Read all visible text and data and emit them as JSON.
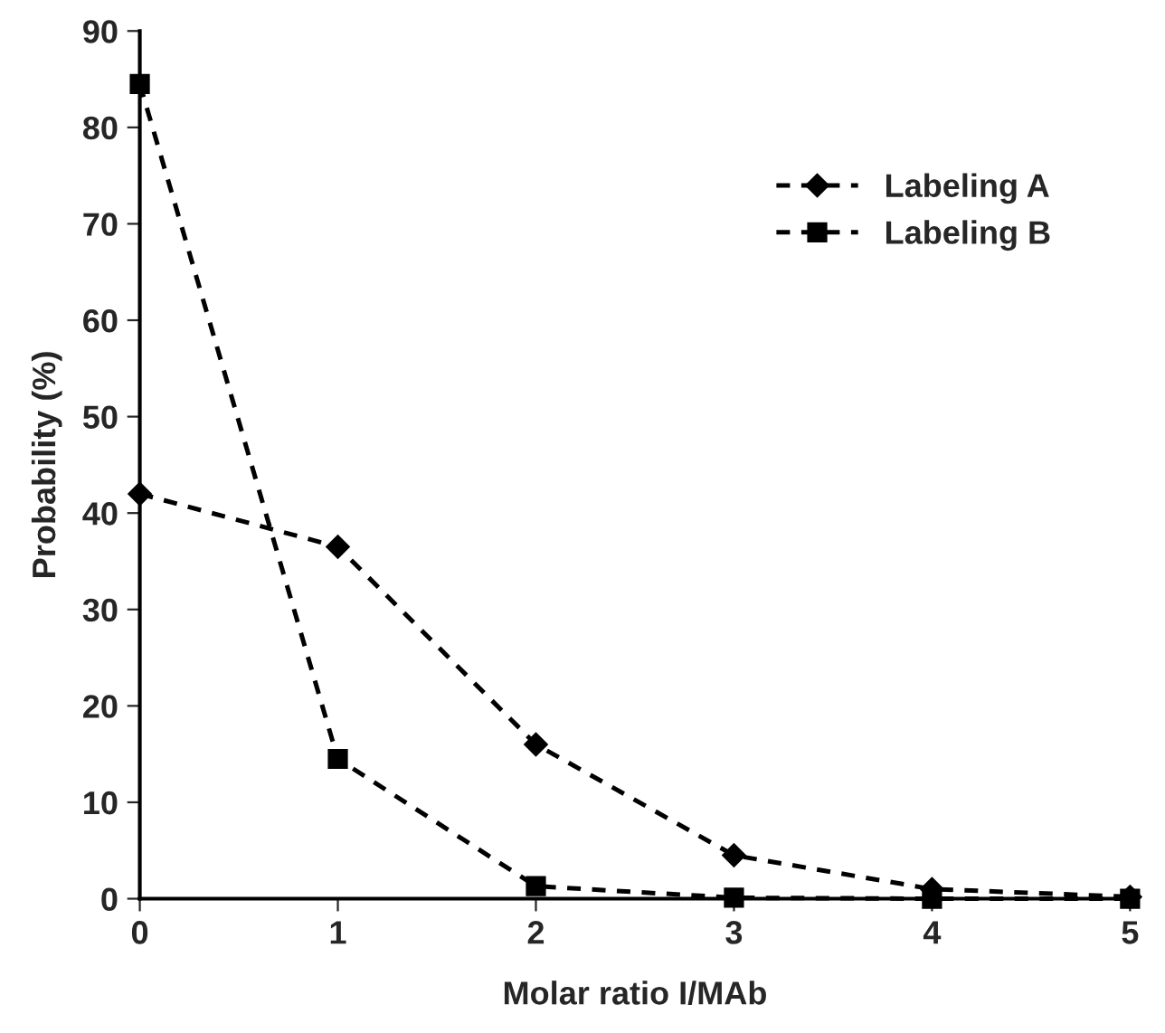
{
  "chart_data": {
    "type": "line",
    "xlabel": "Molar ratio I/MAb",
    "ylabel": "Probability (%)",
    "x": [
      0,
      1,
      2,
      3,
      4,
      5
    ],
    "series": [
      {
        "name": "Labeling A",
        "color": "#000000",
        "marker": "diamond",
        "values": [
          42,
          36.5,
          16,
          4.5,
          1,
          0.2
        ]
      },
      {
        "name": "Labeling B",
        "color": "#000000",
        "marker": "square",
        "values": [
          84.5,
          14.5,
          1.3,
          0.1,
          0,
          0
        ]
      }
    ],
    "xlim": [
      0,
      5
    ],
    "xticks": [
      0,
      1,
      2,
      3,
      4,
      5
    ],
    "ylim": [
      0,
      90
    ],
    "yticks": [
      0,
      10,
      20,
      30,
      40,
      50,
      60,
      70,
      80,
      90
    ],
    "line_style": "dashed",
    "grid": false,
    "legend": "top right"
  }
}
